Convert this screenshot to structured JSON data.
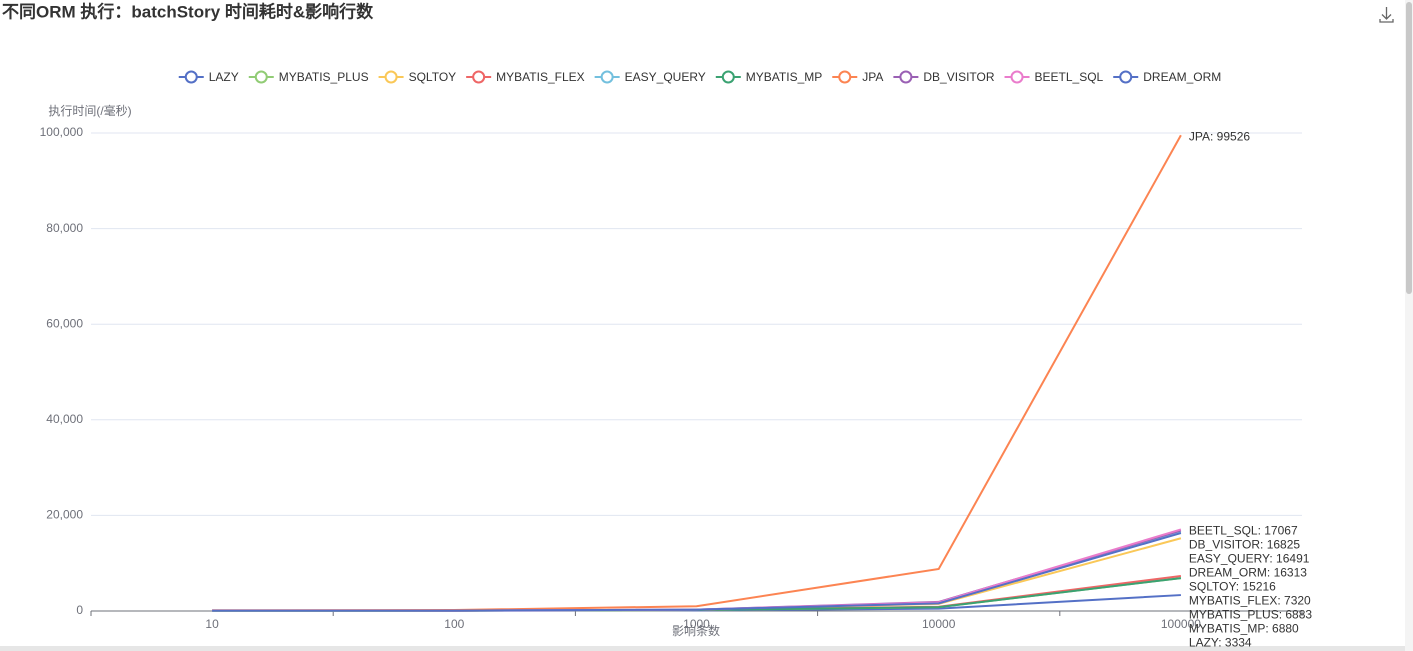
{
  "chart_data": {
    "type": "line",
    "title": "不同ORM 执行：batchStory 时间耗时&影响行数",
    "x_label": "影响条数",
    "y_label": "执行时间(/毫秒)",
    "categories": [
      "10",
      "100",
      "1000",
      "10000",
      "100000"
    ],
    "ylim": [
      0,
      100000
    ],
    "yticks": [
      0,
      {
        "value": 20000,
        "label": "20,000"
      },
      {
        "value": 40000,
        "label": "40,000"
      },
      {
        "value": 60000,
        "label": "60,000"
      },
      {
        "value": 80000,
        "label": "80,000"
      },
      {
        "value": 100000,
        "label": "100,000"
      }
    ],
    "grid": true,
    "legend": "top",
    "series": [
      {
        "name": "LAZY",
        "color": "#5470c6",
        "values": [
          60,
          50,
          120,
          500,
          3334
        ],
        "value_labels": [
          null,
          null,
          null,
          null,
          "LAZY: 3334"
        ]
      },
      {
        "name": "MYBATIS_PLUS",
        "color": "#91cc75",
        "values": [
          80,
          70,
          200,
          800,
          6883
        ],
        "value_labels": [
          null,
          null,
          null,
          null,
          "MYBATIS_PLUS: 6883"
        ]
      },
      {
        "name": "SQLTOY",
        "color": "#fac858",
        "values": [
          90,
          80,
          250,
          1500,
          15216
        ],
        "value_labels": [
          null,
          null,
          null,
          null,
          "SQLTOY: 15216"
        ]
      },
      {
        "name": "MYBATIS_FLEX",
        "color": "#ee6666",
        "values": [
          80,
          70,
          200,
          900,
          7320
        ],
        "value_labels": [
          null,
          null,
          null,
          null,
          "MYBATIS_FLEX: 7320"
        ]
      },
      {
        "name": "EASY_QUERY",
        "color": "#73c0de",
        "values": [
          90,
          80,
          250,
          1700,
          16491
        ],
        "value_labels": [
          null,
          null,
          null,
          null,
          "EASY_QUERY: 16491"
        ]
      },
      {
        "name": "MYBATIS_MP",
        "color": "#3ba272",
        "values": [
          80,
          70,
          200,
          800,
          6880
        ],
        "value_labels": [
          null,
          null,
          null,
          null,
          "MYBATIS_MP: 6880"
        ]
      },
      {
        "name": "JPA",
        "color": "#fc8452",
        "values": [
          150,
          200,
          1000,
          8800,
          99526
        ],
        "value_labels": [
          null,
          null,
          null,
          null,
          "JPA: 99526"
        ]
      },
      {
        "name": "DB_VISITOR",
        "color": "#9a60b4",
        "values": [
          100,
          90,
          300,
          1900,
          16825
        ],
        "value_labels": [
          null,
          null,
          null,
          null,
          "DB_VISITOR: 16825"
        ]
      },
      {
        "name": "BEETL_SQL",
        "color": "#ea7ccc",
        "values": [
          100,
          90,
          300,
          1800,
          17067
        ],
        "value_labels": [
          null,
          null,
          null,
          null,
          "BEETL_SQL: 17067"
        ]
      },
      {
        "name": "DREAM_ORM",
        "color": "#5470c6",
        "values": [
          90,
          80,
          280,
          1600,
          16313
        ],
        "value_labels": [
          null,
          null,
          null,
          null,
          "DREAM_ORM: 16313"
        ]
      }
    ]
  }
}
